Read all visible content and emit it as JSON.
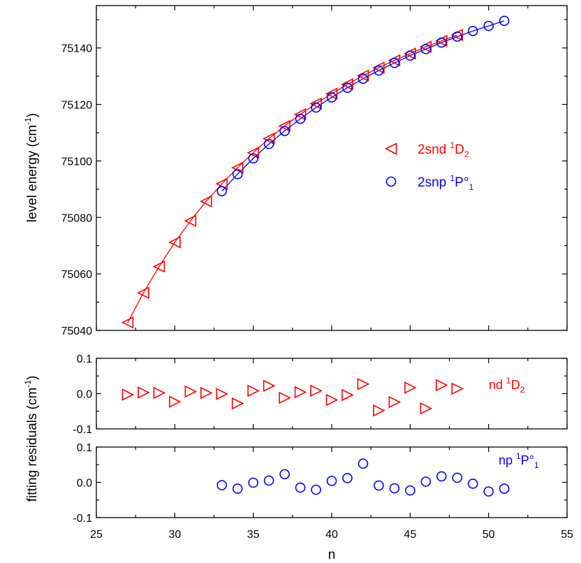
{
  "chart_data": [
    {
      "type": "line",
      "xlim": [
        25,
        55
      ],
      "ylim": [
        75040,
        75155
      ],
      "ylabel": "level energy (cm",
      "ylabel_sup": "-1",
      "ylabel_end": ")",
      "yticks": [
        75040,
        75060,
        75080,
        75100,
        75120,
        75140
      ],
      "legend_position": "right",
      "series": [
        {
          "name": "2snd ",
          "name_sup": "1",
          "name_mid": "D",
          "name_sub": "2",
          "color": "#ff0000",
          "marker": "triangle-left",
          "x": [
            27,
            28,
            29,
            30,
            31,
            32,
            33,
            34,
            35,
            36,
            37,
            38,
            39,
            40,
            41,
            42,
            43,
            44,
            45,
            46,
            47,
            48
          ],
          "y": [
            75042.8,
            75053.3,
            75062.6,
            75071.2,
            75078.8,
            75085.7,
            75091.9,
            75097.6,
            75102.9,
            75107.9,
            75112.4,
            75116.5,
            75120.3,
            75123.8,
            75127.1,
            75130.2,
            75133.0,
            75135.6,
            75138.0,
            75140.4,
            75142.5,
            75144.6
          ]
        },
        {
          "name": "2snp ",
          "name_sup": "1",
          "name_mid": "P°",
          "name_sub": "1",
          "color": "#0000ff",
          "marker": "circle",
          "x": [
            33,
            34,
            35,
            36,
            37,
            38,
            39,
            40,
            41,
            42,
            43,
            44,
            45,
            46,
            47,
            48,
            49,
            50,
            51
          ],
          "y": [
            75089.3,
            75095.3,
            75100.9,
            75106.0,
            75110.6,
            75114.9,
            75118.9,
            75122.5,
            75125.9,
            75129.1,
            75132.0,
            75134.7,
            75137.3,
            75139.6,
            75141.9,
            75144.0,
            75146.0,
            75147.8,
            75149.6
          ]
        }
      ]
    },
    {
      "type": "scatter",
      "xlim": [
        25,
        55
      ],
      "ylim": [
        -0.1,
        0.1
      ],
      "yticks": [
        -0.1,
        0.0,
        0.1
      ],
      "annotation": {
        "pre": "nd ",
        "sup": "1",
        "mid": "D",
        "sub": "2"
      },
      "series": [
        {
          "color": "#ff0000",
          "marker": "triangle-right",
          "x": [
            27,
            28,
            29,
            30,
            31,
            32,
            33,
            34,
            35,
            36,
            37,
            38,
            39,
            40,
            41,
            42,
            43,
            44,
            45,
            46,
            47,
            48
          ],
          "y": [
            -0.003,
            0.003,
            0.002,
            -0.023,
            0.006,
            0.002,
            -0.001,
            -0.028,
            0.008,
            0.022,
            -0.012,
            0.004,
            0.008,
            -0.018,
            -0.004,
            0.027,
            -0.048,
            -0.024,
            0.017,
            -0.042,
            0.024,
            0.014
          ]
        }
      ]
    },
    {
      "type": "scatter",
      "xlim": [
        25,
        55
      ],
      "ylim": [
        -0.1,
        0.1
      ],
      "yticks": [
        -0.1,
        0.0,
        0.1
      ],
      "annotation": {
        "pre": "np ",
        "sup": "1",
        "mid": "P°",
        "sub": "1"
      },
      "series": [
        {
          "color": "#0000ff",
          "marker": "circle",
          "x": [
            33,
            34,
            35,
            36,
            37,
            38,
            39,
            40,
            41,
            42,
            43,
            44,
            45,
            46,
            47,
            48,
            49,
            50,
            51
          ],
          "y": [
            -0.008,
            -0.018,
            -0.001,
            0.005,
            0.023,
            -0.015,
            -0.021,
            0.004,
            0.012,
            0.053,
            -0.009,
            -0.017,
            -0.023,
            0.002,
            0.017,
            0.013,
            -0.004,
            -0.026,
            -0.018
          ]
        }
      ]
    }
  ],
  "shared_axes": {
    "xlabel": "n",
    "xticks": [
      25,
      30,
      35,
      40,
      45,
      50,
      55
    ],
    "residual_ylabel": "fitting residuals (cm",
    "residual_ylabel_sup": "-1",
    "residual_ylabel_end": ")"
  }
}
